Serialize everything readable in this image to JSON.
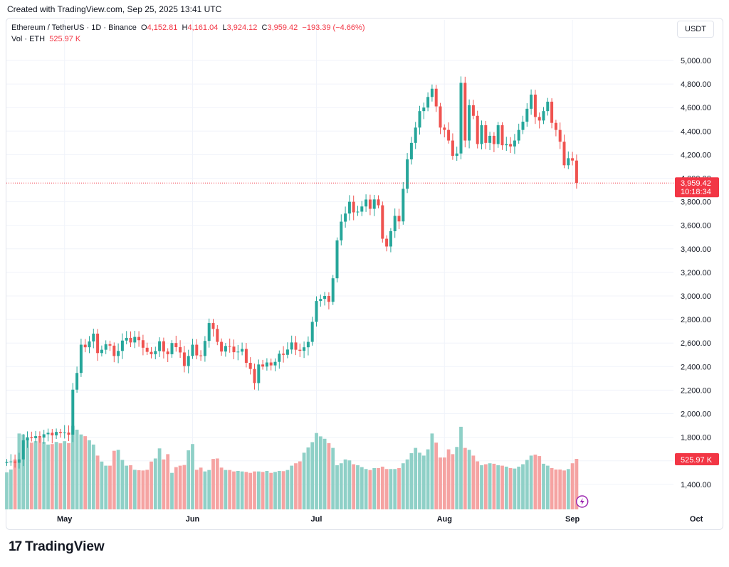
{
  "header": {
    "created_text": "Created with TradingView.com, Sep 25, 2025 13:41 UTC"
  },
  "legend": {
    "symbol": "Ethereum / TetherUS · 1D · Binance",
    "open_label": "O",
    "open": "4,152.81",
    "high_label": "H",
    "high": "4,161.04",
    "low_label": "L",
    "low": "3,924.12",
    "close_label": "C",
    "close": "3,959.42",
    "change": "−193.39 (−4.66%)",
    "vol_label": "Vol · ETH",
    "vol_value": "525.97 K"
  },
  "unit_button": "USDT",
  "price_tag": {
    "price": "3,959.42",
    "countdown": "10:18:34"
  },
  "volume_tag": "525.97 K",
  "logo": {
    "mark": "17",
    "word": "TradingView"
  },
  "colors": {
    "up": "#26a69a",
    "down": "#ef5350",
    "up_vol": "#8fd0c7",
    "down_vol": "#f5a3a2",
    "tag": "#f23645"
  },
  "chart_data": {
    "type": "candlestick",
    "y_axis": {
      "ticks": [
        1400,
        1600,
        1800,
        2000,
        2200,
        2400,
        2600,
        2800,
        3000,
        3200,
        3400,
        3600,
        3800,
        4000,
        4200,
        4400,
        4600,
        4800,
        5000
      ],
      "tick_labels": [
        "1,400.00",
        "1,600.00",
        "1,800.00",
        "2,000.00",
        "2,200.00",
        "2,400.00",
        "2,600.00",
        "2,800.00",
        "3,000.00",
        "3,200.00",
        "3,400.00",
        "3,600.00",
        "3,800.00",
        "4,000.00",
        "4,200.00",
        "4,400.00",
        "4,600.00",
        "4,800.00",
        "5,000.00"
      ]
    },
    "x_axis": {
      "month_labels": [
        {
          "label": "May",
          "date": "2025-05-01"
        },
        {
          "label": "Jun",
          "date": "2025-06-01"
        },
        {
          "label": "Jul",
          "date": "2025-07-01"
        },
        {
          "label": "Aug",
          "date": "2025-08-01"
        },
        {
          "label": "Sep",
          "date": "2025-09-01"
        },
        {
          "label": "Oct",
          "date": "2025-10-01"
        }
      ]
    },
    "start_date": "2025-04-17",
    "current_price": 3959.42,
    "close": [
      1590,
      1594,
      1583,
      1612,
      1774,
      1800,
      1792,
      1809,
      1797,
      1825,
      1838,
      1816,
      1845,
      1836,
      1840,
      1822,
      2204,
      2346,
      2586,
      2564,
      2614,
      2680,
      2515,
      2543,
      2590,
      2578,
      2490,
      2533,
      2621,
      2644,
      2605,
      2652,
      2624,
      2560,
      2525,
      2505,
      2532,
      2615,
      2528,
      2505,
      2600,
      2565,
      2520,
      2405,
      2490,
      2586,
      2495,
      2490,
      2618,
      2770,
      2720,
      2610,
      2528,
      2575,
      2570,
      2522,
      2527,
      2550,
      2432,
      2380,
      2260,
      2418,
      2400,
      2435,
      2410,
      2440,
      2510,
      2500,
      2545,
      2605,
      2543,
      2534,
      2564,
      2610,
      2780,
      2957,
      2975,
      3000,
      2950,
      3150,
      3472,
      3631,
      3700,
      3800,
      3710,
      3716,
      3760,
      3819,
      3740,
      3820,
      3770,
      3486,
      3420,
      3550,
      3680,
      3633,
      3910,
      4160,
      4300,
      4430,
      4570,
      4600,
      4690,
      4760,
      4610,
      4430,
      4410,
      4320,
      4190,
      4210,
      4810,
      4320,
      4620,
      4530,
      4290,
      4450,
      4300,
      4360,
      4290,
      4450,
      4280,
      4290,
      4270,
      4320,
      4410,
      4480,
      4590,
      4710,
      4520,
      4490,
      4570,
      4650,
      4470,
      4410,
      4310,
      4110,
      4170,
      4150,
      3960
    ],
    "volume_k": [
      385,
      415,
      520,
      790,
      780,
      738,
      695,
      710,
      745,
      702,
      675,
      680,
      702,
      688,
      710,
      690,
      870,
      830,
      780,
      762,
      720,
      675,
      560,
      498,
      455,
      455,
      610,
      620,
      515,
      455,
      460,
      412,
      408,
      405,
      412,
      498,
      530,
      635,
      520,
      575,
      380,
      440,
      455,
      462,
      615,
      680,
      412,
      435,
      395,
      410,
      525,
      530,
      435,
      410,
      410,
      395,
      400,
      395,
      390,
      380,
      395,
      395,
      390,
      400,
      380,
      390,
      400,
      398,
      410,
      455,
      480,
      500,
      590,
      645,
      700,
      795,
      760,
      735,
      690,
      640,
      460,
      480,
      520,
      510,
      470,
      460,
      440,
      420,
      410,
      430,
      430,
      445,
      420,
      420,
      420,
      430,
      480,
      520,
      585,
      640,
      590,
      560,
      625,
      790,
      695,
      540,
      540,
      625,
      575,
      650,
      860,
      640,
      620,
      560,
      500,
      460,
      470,
      480,
      475,
      460,
      455,
      445,
      430,
      425,
      445,
      470,
      515,
      560,
      570,
      555,
      475,
      455,
      430,
      415,
      415,
      405,
      420,
      480,
      526
    ]
  }
}
